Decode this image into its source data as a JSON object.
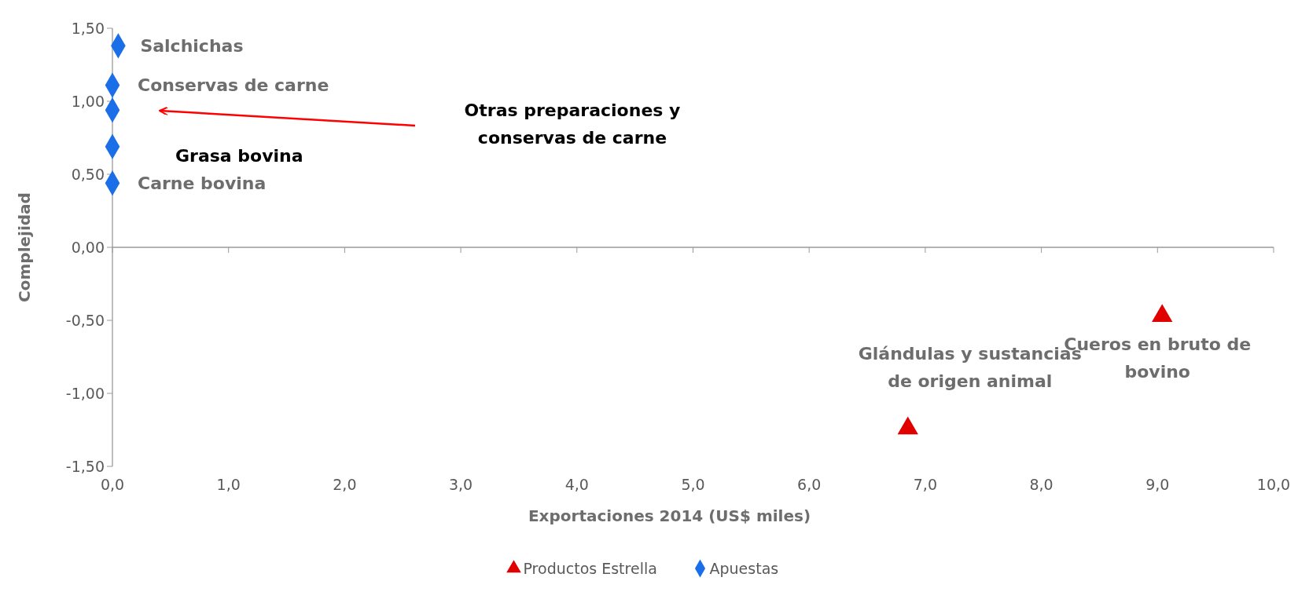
{
  "chart_data": {
    "type": "scatter",
    "xlabel": "Exportaciones 2014 (US$ miles)",
    "ylabel": "Complejidad",
    "xlim": [
      0,
      10
    ],
    "ylim": [
      -1.5,
      1.5
    ],
    "xticks": [
      {
        "value": 0,
        "label": "0,0"
      },
      {
        "value": 1,
        "label": "1,0"
      },
      {
        "value": 2,
        "label": "2,0"
      },
      {
        "value": 3,
        "label": "3,0"
      },
      {
        "value": 4,
        "label": "4,0"
      },
      {
        "value": 5,
        "label": "5,0"
      },
      {
        "value": 6,
        "label": "6,0"
      },
      {
        "value": 7,
        "label": "7,0"
      },
      {
        "value": 8,
        "label": "8,0"
      },
      {
        "value": 9,
        "label": "9,0"
      },
      {
        "value": 10,
        "label": "10,0"
      }
    ],
    "yticks": [
      {
        "value": -1.5,
        "label": "-1,50"
      },
      {
        "value": -1,
        "label": "-1,00"
      },
      {
        "value": -0.5,
        "label": "-0,50"
      },
      {
        "value": 0,
        "label": "0,00"
      },
      {
        "value": 0.5,
        "label": "0,50"
      },
      {
        "value": 1,
        "label": "1,00"
      },
      {
        "value": 1.5,
        "label": "1,50"
      }
    ],
    "series": [
      {
        "name": "Productos Estrella",
        "color": "#e00000",
        "marker": "triangle",
        "x": [
          6.85,
          9.04
        ],
        "values": [
          -1.24,
          -0.47
        ]
      },
      {
        "name": "Apuestas",
        "color": "#1a6fe8",
        "marker": "diamond",
        "x": [
          0.05,
          0,
          0,
          0,
          0
        ],
        "values": [
          1.38,
          1.11,
          0.94,
          0.69,
          0.44
        ]
      }
    ],
    "annotations": [
      {
        "text": "Salchichas",
        "x": 0.05,
        "y": 1.38
      },
      {
        "text": "Conservas de carne",
        "x": 0,
        "y": 1.11
      },
      "Otras preparaciones y conservas de carne",
      "Grasa bovina",
      {
        "text": "Carne bovina",
        "x": 0,
        "y": 0.44
      },
      {
        "text": "Glándulas y sustancias de origen animal",
        "x": 6.85,
        "y": -1.24
      },
      {
        "text": "Cueros en bruto de bovino",
        "x": 9.04,
        "y": -0.47
      }
    ],
    "legend": "bottom"
  }
}
